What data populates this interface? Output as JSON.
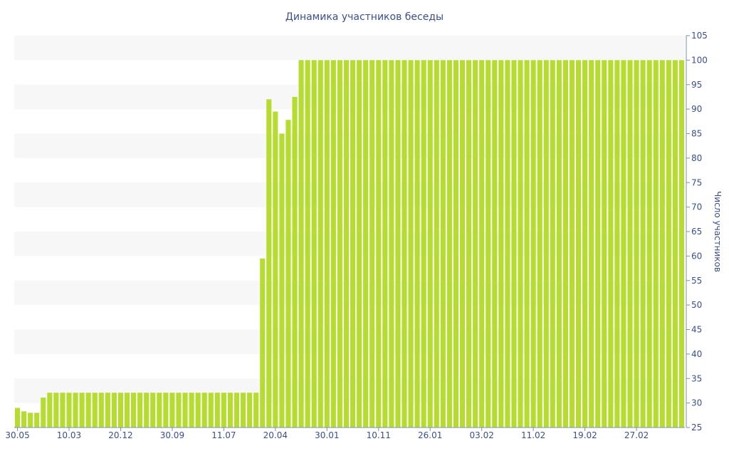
{
  "chart_data": {
    "type": "bar",
    "title": "Динамика участников беседы",
    "ylabel": "Число участников",
    "xlabel": "",
    "ylim": [
      25,
      105
    ],
    "yticks": [
      25,
      30,
      35,
      40,
      45,
      50,
      55,
      60,
      65,
      70,
      75,
      80,
      85,
      90,
      95,
      100,
      105
    ],
    "y_axis_position": "right",
    "grid": "alternating horizontal bands",
    "x_tick_labels": [
      "30.05",
      "10.03",
      "20.12",
      "30.09",
      "11.07",
      "20.04",
      "30.01",
      "10.11",
      "26.01",
      "03.02",
      "11.02",
      "19.02",
      "27.02"
    ],
    "x_tick_indices": [
      0,
      8,
      16,
      24,
      32,
      40,
      48,
      56,
      64,
      72,
      80,
      88,
      96
    ],
    "series": [
      {
        "color": "#b5dc2e",
        "values": [
          29,
          28.3,
          28,
          28,
          31.1,
          32.1,
          32.1,
          32.1,
          32.1,
          32.1,
          32.1,
          32.1,
          32.1,
          32.1,
          32.1,
          32.1,
          32.1,
          32.1,
          32.1,
          32.1,
          32.1,
          32.1,
          32.1,
          32.1,
          32.1,
          32.1,
          32.1,
          32.1,
          32.1,
          32.1,
          32.1,
          32.1,
          32.1,
          32.1,
          32.1,
          32.1,
          32.1,
          32.1,
          59.5,
          92,
          89.5,
          85,
          87.8,
          92.5,
          100,
          100,
          100,
          100,
          100,
          100,
          100,
          100,
          100,
          100,
          100,
          100,
          100,
          100,
          100,
          100,
          100,
          100,
          100,
          100,
          100,
          100,
          100,
          100,
          100,
          100,
          100,
          100,
          100,
          100,
          100,
          100,
          100,
          100,
          100,
          100,
          100,
          100,
          100,
          100,
          100,
          100,
          100,
          100,
          100,
          100,
          100,
          100,
          100,
          100,
          100,
          100,
          100,
          100,
          100,
          100,
          100,
          100,
          100,
          100
        ]
      }
    ]
  },
  "colors": {
    "bar": "#b5dc2e",
    "band": "#f7f7f7",
    "text": "#3b4f8c",
    "axis": "#7a8fb8"
  }
}
